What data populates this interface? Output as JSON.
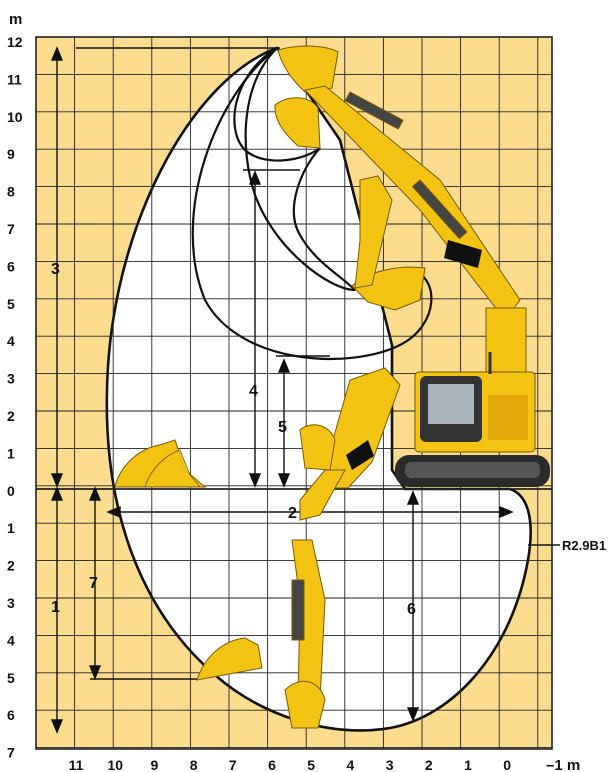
{
  "units": {
    "top": "m",
    "bottom": "–1 m"
  },
  "y_axis_labels": [
    "12",
    "11",
    "10",
    "9",
    "8",
    "7",
    "6",
    "5",
    "4",
    "3",
    "2",
    "1",
    "0",
    "1",
    "2",
    "3",
    "4",
    "5",
    "6",
    "7"
  ],
  "x_axis_labels": [
    "11",
    "10",
    "9",
    "8",
    "7",
    "6",
    "5",
    "4",
    "3",
    "2",
    "1",
    "0"
  ],
  "dimension_markers": [
    "1",
    "2",
    "3",
    "4",
    "5",
    "6",
    "7"
  ],
  "drawing_code": "R2.9B1",
  "colors": {
    "background": "#fcdc8f",
    "grid": "#222222",
    "envelope_fill": "#ffffff",
    "machine": "#f3c413",
    "machine_dark": "#c99a00",
    "track": "#2b2b2b"
  }
}
